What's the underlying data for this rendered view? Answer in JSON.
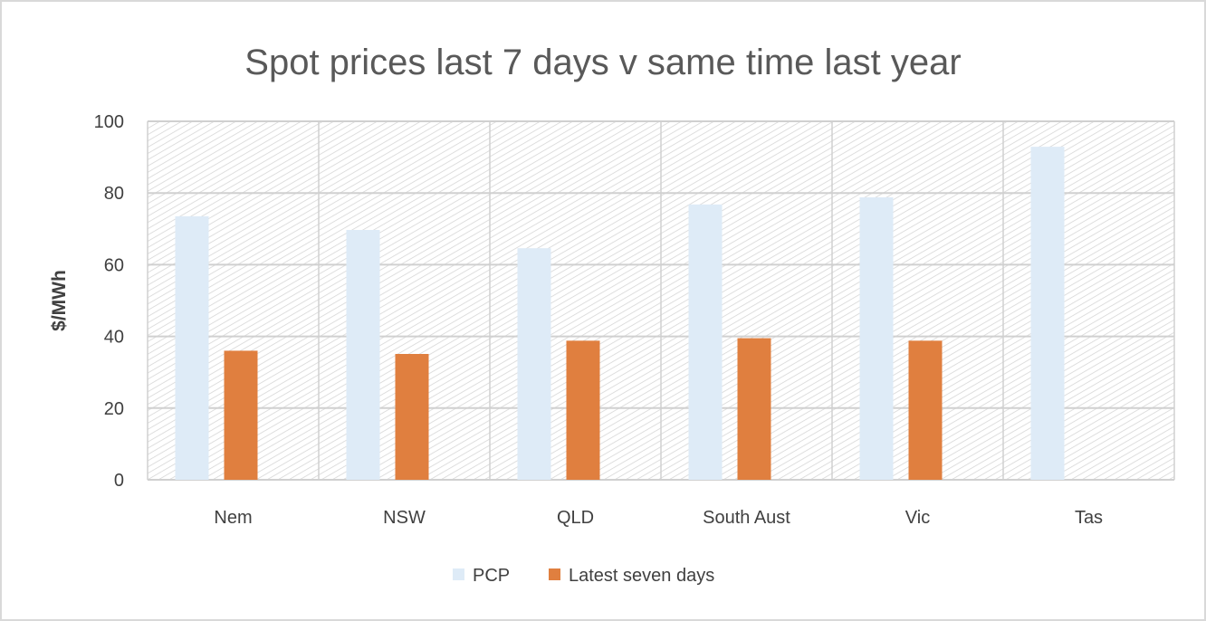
{
  "chart_data": {
    "type": "bar",
    "title": "Spot prices last 7 days v same time last year",
    "xlabel": "",
    "ylabel": "$/MWh",
    "ylim": [
      0,
      100
    ],
    "yticks": [
      0,
      20,
      40,
      60,
      80,
      100
    ],
    "grid": true,
    "legend_position": "bottom",
    "categories": [
      "Nem",
      "NSW",
      "QLD",
      "South Aust",
      "Vic",
      "Tas"
    ],
    "series": [
      {
        "name": "PCP",
        "color": "#DEEBF7",
        "values": [
          73.5,
          69.7,
          64.6,
          76.8,
          78.8,
          92.9
        ]
      },
      {
        "name": "Latest seven days",
        "color": "#E07F3F",
        "values": [
          36.0,
          35.1,
          38.8,
          39.5,
          38.8,
          0
        ]
      }
    ]
  }
}
